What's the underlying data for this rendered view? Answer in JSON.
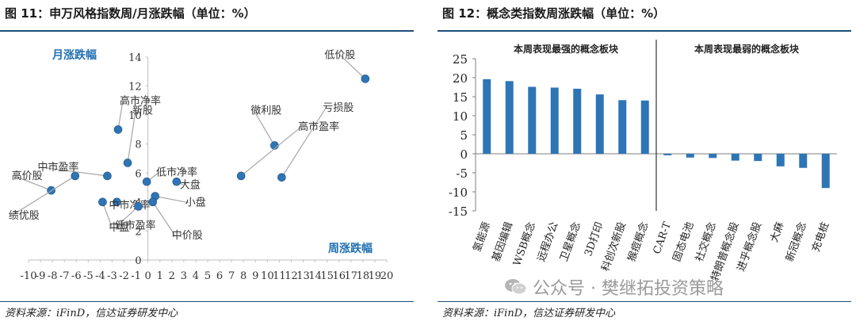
{
  "left_panel": {
    "figure_title": "图 11：申万风格指数周/月涨跌幅（单位：%）",
    "source": "资料来源：iFinD，信达证券研发中心"
  },
  "right_panel": {
    "figure_title": "图 12：概念类指数周涨跌幅（单位：%）",
    "source": "资料来源：iFinD，信达证券研发中心"
  },
  "watermark": {
    "text": "公众号 · 樊继拓投资策略",
    "icon": "wechat-icon"
  },
  "colors": {
    "point": "#2e75b6",
    "bar": "#2e75b6",
    "axis_label": "#1f6fb2",
    "rule": "#1f4e79",
    "leader": "#a6a6a6"
  },
  "chart_data": [
    {
      "type": "scatter",
      "xlabel": "周涨跌幅",
      "ylabel": "月涨跌幅",
      "xlim": [
        -10,
        20
      ],
      "ylim": [
        0,
        14
      ],
      "xticks": [
        "-10",
        "-9",
        "-8",
        "-7",
        "-6",
        "-5",
        "-4",
        "-3",
        "-2",
        "-1",
        "0",
        "1",
        "2",
        "3",
        "4",
        "5",
        "6",
        "7",
        "8",
        "9",
        "10",
        "11",
        "12",
        "13",
        "14",
        "15",
        "16",
        "17",
        "18",
        "19",
        "20"
      ],
      "yticks": [
        "0",
        "2",
        "4",
        "6",
        "8",
        "10",
        "12",
        "14"
      ],
      "points": [
        {
          "label": "低价股",
          "x": 18.2,
          "y": 12.5
        },
        {
          "label": "亏损股",
          "x": 11.2,
          "y": 5.7
        },
        {
          "label": "微利股",
          "x": 10.6,
          "y": 7.9
        },
        {
          "label": "高市盈率",
          "x": 7.8,
          "y": 5.8
        },
        {
          "label": "高价股",
          "x": -8.1,
          "y": 4.8
        },
        {
          "label": "绩优股",
          "x": -6.1,
          "y": 5.8
        },
        {
          "label": "中市盈率",
          "x": -3.4,
          "y": 5.8
        },
        {
          "label": "中市净率",
          "x": -2.6,
          "y": 4.0
        },
        {
          "label": "新股",
          "x": -1.7,
          "y": 6.7
        },
        {
          "label": "高市净率",
          "x": -2.5,
          "y": 9.0
        },
        {
          "label": "低市净率",
          "x": -0.1,
          "y": 5.4
        },
        {
          "label": "大盘",
          "x": 2.4,
          "y": 5.4
        },
        {
          "label": "小盘",
          "x": 0.6,
          "y": 4.4
        },
        {
          "label": "中价股",
          "x": 0.4,
          "y": 4.0
        },
        {
          "label": "低市盈率",
          "x": -0.8,
          "y": 3.7
        },
        {
          "label": "中盘",
          "x": -3.8,
          "y": 4.0
        }
      ]
    },
    {
      "type": "bar",
      "ylim": [
        -15,
        25
      ],
      "yticks": [
        "-15",
        "-10",
        "-5",
        "0",
        "5",
        "10",
        "15",
        "20",
        "25"
      ],
      "group_labels": [
        "本周表现最强的概念板块",
        "本周表现最弱的概念板块"
      ],
      "categories": [
        "氢能源",
        "基因编辑",
        "WSB概念",
        "远程办公",
        "卫星概念",
        "3D打印",
        "科创次新股",
        "猴痘概念",
        "CAR-T",
        "固态电池",
        "社交概念",
        "特朗普概念股",
        "进乎概念股",
        "大麻",
        "新冠概念",
        "充电桩"
      ],
      "values": [
        19.6,
        19.1,
        17.6,
        17.4,
        17.1,
        15.6,
        14.1,
        14.0,
        -0.4,
        -1.0,
        -1.1,
        -1.8,
        -1.9,
        -3.3,
        -3.7,
        -9.0
      ]
    }
  ]
}
